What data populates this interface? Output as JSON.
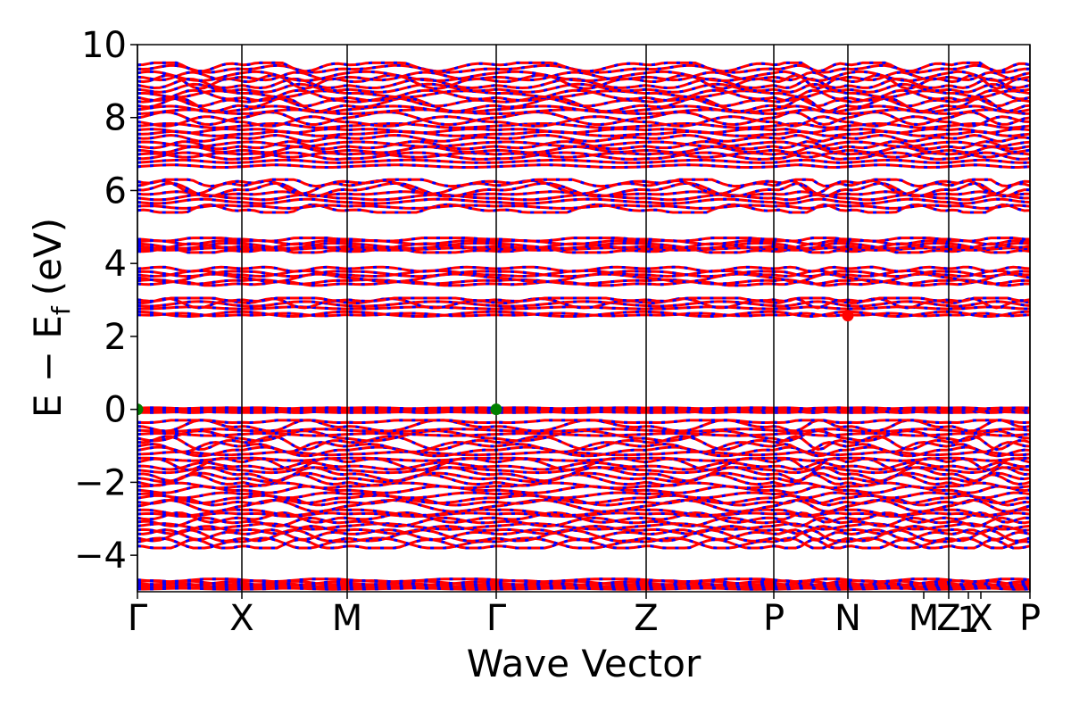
{
  "chart_data": {
    "type": "line",
    "title": "",
    "xlabel": "Wave Vector",
    "ylabel": "E − E",
    "ylabel_subscript": "f",
    "ylabel_unit": "(eV)",
    "ylim": [
      -5,
      10
    ],
    "yticks": [
      -4,
      -2,
      0,
      2,
      4,
      6,
      8,
      10
    ],
    "ytick_labels": [
      "−4",
      "−2",
      "0",
      "2",
      "4",
      "6",
      "8",
      "10"
    ],
    "kpath": {
      "labels": [
        "Γ",
        "X",
        "M",
        "Γ",
        "Z",
        "P",
        "N",
        "M",
        "Z",
        "1",
        "X",
        "P"
      ],
      "x": [
        0.0,
        1.17,
        2.35,
        4.02,
        5.7,
        7.13,
        7.96,
        8.81,
        9.09,
        9.31,
        9.45,
        10.0
      ],
      "segment_boundaries": [
        0.0,
        1.17,
        2.35,
        4.02,
        5.7,
        7.13,
        7.96,
        9.09,
        10.0
      ]
    },
    "grid": false,
    "legend": "none",
    "band_colors": [
      "#ff0000",
      "#0000ff"
    ],
    "band_groups": [
      {
        "energy_range": [
          -4.95,
          -4.65
        ]
      },
      {
        "energy_range": [
          -3.8,
          -0.3
        ]
      },
      {
        "energy_range": [
          -0.1,
          0.05
        ]
      },
      {
        "energy_range": [
          2.55,
          3.05
        ]
      },
      {
        "energy_range": [
          3.4,
          3.9
        ]
      },
      {
        "energy_range": [
          4.3,
          4.7
        ]
      },
      {
        "energy_range": [
          5.4,
          6.3
        ]
      },
      {
        "energy_range": [
          6.6,
          9.5
        ]
      }
    ],
    "markers": [
      {
        "name": "VBM",
        "x": 0.0,
        "y": 0.0,
        "color": "#008000"
      },
      {
        "name": "VBM",
        "x": 4.02,
        "y": 0.0,
        "color": "#008000"
      },
      {
        "name": "CBM",
        "x": 7.96,
        "y": 2.57,
        "color": "#ff0000"
      }
    ]
  }
}
